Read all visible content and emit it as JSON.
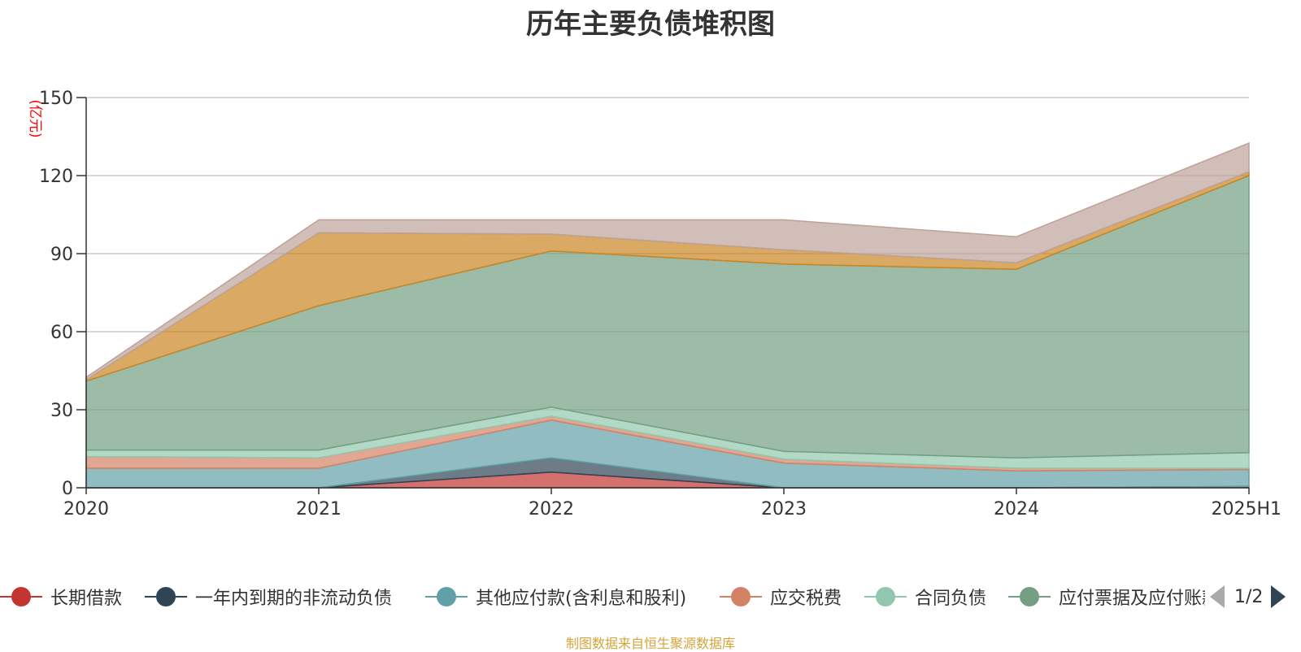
{
  "chart_data": {
    "type": "area",
    "title": "历年主要负债堆积图",
    "ylabel": "(亿元)",
    "xlabel": "",
    "x": [
      "2020",
      "2021",
      "2022",
      "2023",
      "2024",
      "2025H1"
    ],
    "ylim": [
      0,
      150
    ],
    "yticks": [
      0,
      30,
      60,
      90,
      120,
      150
    ],
    "grid": true,
    "stacked": true,
    "legend_position": "bottom",
    "series": [
      {
        "name": "长期借款",
        "color": "#c23531",
        "values": [
          0,
          0,
          6,
          0,
          0,
          0.5
        ]
      },
      {
        "name": "一年内到期的非流动负债",
        "color": "#2f4554",
        "values": [
          0,
          0,
          5.5,
          0,
          0,
          0
        ]
      },
      {
        "name": "其他应付款(含利息和股利)",
        "color": "#61a0a8",
        "values": [
          7.5,
          7.5,
          14.5,
          9.5,
          6.5,
          6.5
        ]
      },
      {
        "name": "应交税费",
        "color": "#d48265",
        "values": [
          4.5,
          4,
          1.5,
          1.5,
          1,
          0.5
        ]
      },
      {
        "name": "合同负债",
        "color": "#91c7ae",
        "values": [
          2.5,
          3,
          3.5,
          3,
          4,
          6
        ]
      },
      {
        "name": "应付票据及应付账款",
        "color": "#749f83",
        "values": [
          26.5,
          55.5,
          60,
          72,
          72.5,
          106.5
        ]
      },
      {
        "name": "",
        "color": "#ca8622",
        "values": [
          0.5,
          28,
          6.5,
          5.5,
          2.5,
          1.5
        ]
      },
      {
        "name": "",
        "color": "#bda29a",
        "values": [
          1,
          5,
          5.5,
          11.5,
          10,
          11
        ]
      }
    ]
  },
  "legend": {
    "items": [
      {
        "label": "长期借款",
        "color": "#c23531"
      },
      {
        "label": "一年内到期的非流动负债",
        "color": "#2f4554"
      },
      {
        "label": "其他应付款(含利息和股利)",
        "color": "#61a0a8"
      },
      {
        "label": "应交税费",
        "color": "#d48265"
      },
      {
        "label": "合同负债",
        "color": "#91c7ae"
      },
      {
        "label": "应付票据及应付账款",
        "color": "#749f83"
      }
    ],
    "page_indicator": "1/2"
  },
  "source_note": "制图数据来自恒生聚源数据库"
}
